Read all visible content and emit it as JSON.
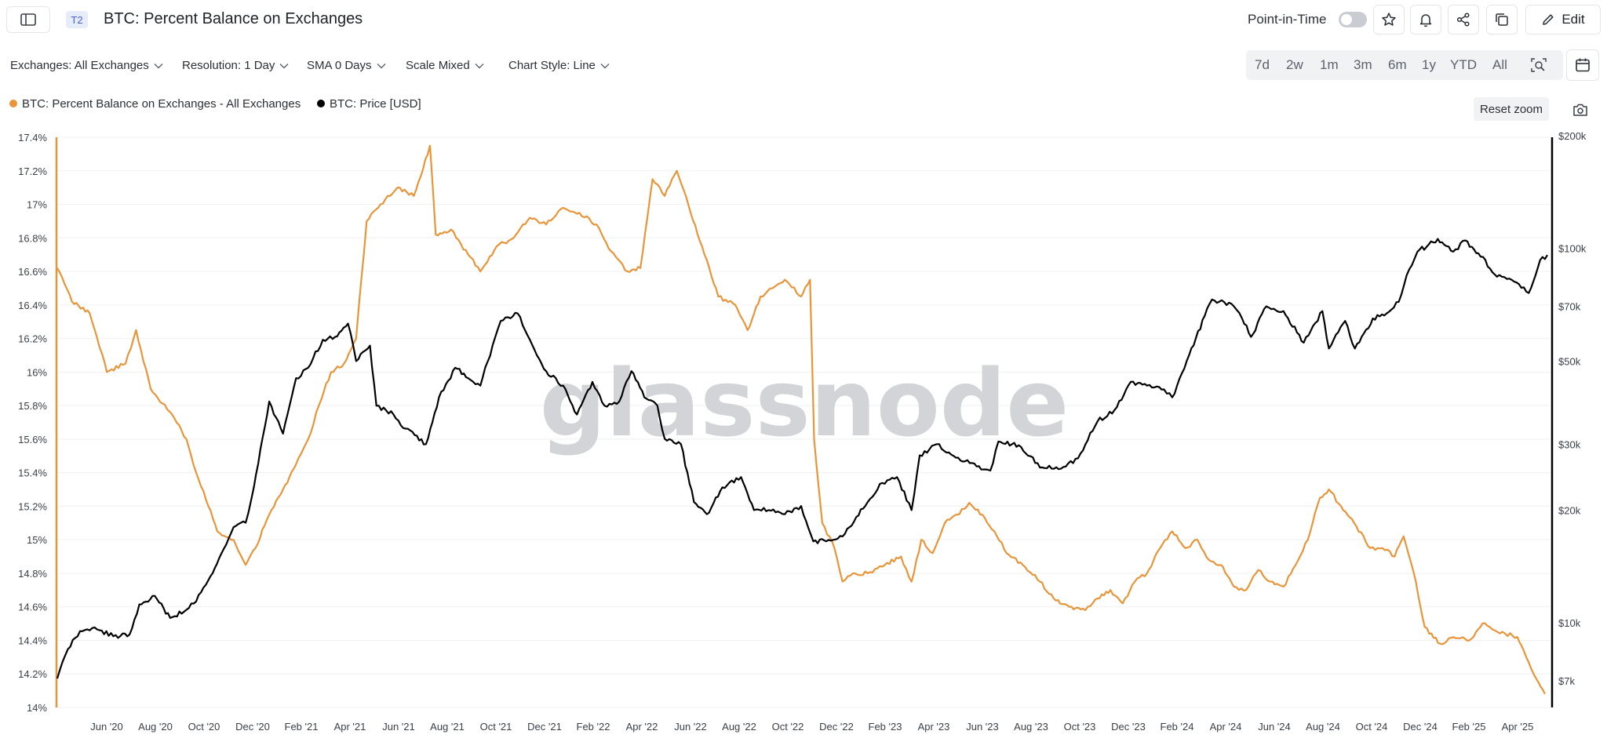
{
  "header": {
    "badge": "T2",
    "title": "BTC: Percent Balance on Exchanges",
    "pit_label": "Point-in-Time",
    "edit_label": "Edit"
  },
  "toolbar": {
    "exchanges": "Exchanges: All Exchanges",
    "resolution": "Resolution: 1 Day",
    "sma": "SMA 0 Days",
    "scale": "Scale Mixed",
    "style": "Chart Style: Line",
    "ranges": [
      "7d",
      "2w",
      "1m",
      "3m",
      "6m",
      "1y",
      "YTD",
      "All"
    ]
  },
  "reset_zoom": "Reset zoom",
  "watermark": "glassnode",
  "colors": {
    "balance": "#e8953a",
    "price": "#000000",
    "grid": "#eef0f3"
  },
  "chart_data": {
    "type": "line",
    "x_ticks": [
      "Jun '20",
      "Aug '20",
      "Oct '20",
      "Dec '20",
      "Feb '21",
      "Apr '21",
      "Jun '21",
      "Aug '21",
      "Oct '21",
      "Dec '21",
      "Feb '22",
      "Apr '22",
      "Jun '22",
      "Aug '22",
      "Oct '22",
      "Dec '22",
      "Feb '23",
      "Apr '23",
      "Jun '23",
      "Aug '23",
      "Oct '23",
      "Dec '23",
      "Feb '24",
      "Apr '24",
      "Jun '24",
      "Aug '24",
      "Oct '24",
      "Dec '24",
      "Feb '25",
      "Apr '25"
    ],
    "left_axis": {
      "ticks": [
        "14%",
        "14.2%",
        "14.4%",
        "14.6%",
        "14.8%",
        "15%",
        "15.2%",
        "15.4%",
        "15.6%",
        "15.8%",
        "16%",
        "16.2%",
        "16.4%",
        "16.6%",
        "16.8%",
        "17%",
        "17.2%",
        "17.4%"
      ],
      "min": 14.0,
      "max": 17.4
    },
    "right_axis": {
      "scale": "log",
      "ticks": [
        {
          "label": "$7k",
          "value": 7000
        },
        {
          "label": "$10k",
          "value": 10000
        },
        {
          "label": "$20k",
          "value": 20000
        },
        {
          "label": "$30k",
          "value": 30000
        },
        {
          "label": "$50k",
          "value": 50000
        },
        {
          "label": "$70k",
          "value": 70000
        },
        {
          "label": "$100k",
          "value": 100000
        },
        {
          "label": "$200k",
          "value": 200000
        }
      ]
    },
    "x_start": "2020-04-21",
    "x_end": "2025-05-01",
    "series": [
      {
        "name": "BTC: Percent Balance on Exchanges - All Exchanges",
        "axis": "left",
        "unit": "%",
        "points": [
          [
            "2020-04-22",
            16.62
          ],
          [
            "2020-05-10",
            16.42
          ],
          [
            "2020-06-01",
            16.35
          ],
          [
            "2020-06-22",
            16.0
          ],
          [
            "2020-07-15",
            16.05
          ],
          [
            "2020-07-28",
            16.25
          ],
          [
            "2020-08-15",
            15.9
          ],
          [
            "2020-09-10",
            15.75
          ],
          [
            "2020-09-28",
            15.6
          ],
          [
            "2020-10-10",
            15.4
          ],
          [
            "2020-10-25",
            15.2
          ],
          [
            "2020-11-05",
            15.05
          ],
          [
            "2020-11-25",
            15.0
          ],
          [
            "2020-12-10",
            14.85
          ],
          [
            "2020-12-22",
            14.95
          ],
          [
            "2021-01-08",
            15.15
          ],
          [
            "2021-01-25",
            15.3
          ],
          [
            "2021-02-10",
            15.45
          ],
          [
            "2021-02-25",
            15.6
          ],
          [
            "2021-03-10",
            15.8
          ],
          [
            "2021-03-25",
            16.0
          ],
          [
            "2021-04-10",
            16.05
          ],
          [
            "2021-04-25",
            16.2
          ],
          [
            "2021-05-08",
            16.9
          ],
          [
            "2021-05-25",
            17.0
          ],
          [
            "2021-06-15",
            17.1
          ],
          [
            "2021-07-05",
            17.05
          ],
          [
            "2021-07-25",
            17.35
          ],
          [
            "2021-08-01",
            16.82
          ],
          [
            "2021-08-20",
            16.85
          ],
          [
            "2021-09-10",
            16.7
          ],
          [
            "2021-09-25",
            16.6
          ],
          [
            "2021-10-15",
            16.75
          ],
          [
            "2021-11-05",
            16.8
          ],
          [
            "2021-11-25",
            16.92
          ],
          [
            "2021-12-15",
            16.88
          ],
          [
            "2022-01-05",
            16.98
          ],
          [
            "2022-01-25",
            16.95
          ],
          [
            "2022-02-15",
            16.88
          ],
          [
            "2022-03-05",
            16.72
          ],
          [
            "2022-03-25",
            16.6
          ],
          [
            "2022-04-10",
            16.62
          ],
          [
            "2022-04-25",
            17.15
          ],
          [
            "2022-05-10",
            17.05
          ],
          [
            "2022-05-25",
            17.2
          ],
          [
            "2022-06-08",
            17.0
          ],
          [
            "2022-06-25",
            16.75
          ],
          [
            "2022-07-15",
            16.45
          ],
          [
            "2022-08-05",
            16.4
          ],
          [
            "2022-08-20",
            16.25
          ],
          [
            "2022-09-05",
            16.45
          ],
          [
            "2022-09-20",
            16.5
          ],
          [
            "2022-10-05",
            16.55
          ],
          [
            "2022-10-25",
            16.45
          ],
          [
            "2022-11-05",
            16.55
          ],
          [
            "2022-11-10",
            15.6
          ],
          [
            "2022-11-20",
            15.1
          ],
          [
            "2022-12-05",
            14.95
          ],
          [
            "2022-12-15",
            14.75
          ],
          [
            "2022-12-28",
            14.8
          ],
          [
            "2023-01-15",
            14.8
          ],
          [
            "2023-02-05",
            14.85
          ],
          [
            "2023-02-25",
            14.9
          ],
          [
            "2023-03-10",
            14.75
          ],
          [
            "2023-03-22",
            15.0
          ],
          [
            "2023-04-05",
            14.92
          ],
          [
            "2023-04-20",
            15.1
          ],
          [
            "2023-05-05",
            15.15
          ],
          [
            "2023-05-20",
            15.22
          ],
          [
            "2023-06-05",
            15.15
          ],
          [
            "2023-06-20",
            15.05
          ],
          [
            "2023-07-05",
            14.92
          ],
          [
            "2023-07-25",
            14.85
          ],
          [
            "2023-08-15",
            14.75
          ],
          [
            "2023-09-01",
            14.65
          ],
          [
            "2023-09-20",
            14.6
          ],
          [
            "2023-10-10",
            14.58
          ],
          [
            "2023-10-25",
            14.65
          ],
          [
            "2023-11-10",
            14.7
          ],
          [
            "2023-11-25",
            14.62
          ],
          [
            "2023-12-10",
            14.75
          ],
          [
            "2023-12-25",
            14.8
          ],
          [
            "2024-01-10",
            14.95
          ],
          [
            "2024-01-25",
            15.05
          ],
          [
            "2024-02-10",
            14.95
          ],
          [
            "2024-02-25",
            15.0
          ],
          [
            "2024-03-10",
            14.88
          ],
          [
            "2024-03-25",
            14.85
          ],
          [
            "2024-04-10",
            14.72
          ],
          [
            "2024-04-25",
            14.7
          ],
          [
            "2024-05-10",
            14.82
          ],
          [
            "2024-05-25",
            14.75
          ],
          [
            "2024-06-10",
            14.72
          ],
          [
            "2024-06-25",
            14.85
          ],
          [
            "2024-07-10",
            15.0
          ],
          [
            "2024-07-25",
            15.25
          ],
          [
            "2024-08-05",
            15.3
          ],
          [
            "2024-08-20",
            15.2
          ],
          [
            "2024-09-05",
            15.1
          ],
          [
            "2024-09-25",
            14.95
          ],
          [
            "2024-10-10",
            14.95
          ],
          [
            "2024-10-25",
            14.9
          ],
          [
            "2024-11-05",
            15.02
          ],
          [
            "2024-11-20",
            14.75
          ],
          [
            "2024-12-01",
            14.48
          ],
          [
            "2024-12-20",
            14.38
          ],
          [
            "2025-01-05",
            14.42
          ],
          [
            "2025-01-25",
            14.4
          ],
          [
            "2025-02-10",
            14.5
          ],
          [
            "2025-02-25",
            14.46
          ],
          [
            "2025-03-10",
            14.44
          ],
          [
            "2025-03-25",
            14.42
          ],
          [
            "2025-04-05",
            14.3
          ],
          [
            "2025-04-20",
            14.15
          ],
          [
            "2025-04-28",
            14.08
          ]
        ]
      },
      {
        "name": "BTC: Price [USD]",
        "axis": "right",
        "unit": "USD",
        "points": [
          [
            "2020-04-22",
            7100
          ],
          [
            "2020-05-05",
            8500
          ],
          [
            "2020-05-20",
            9500
          ],
          [
            "2020-06-10",
            9600
          ],
          [
            "2020-06-30",
            9200
          ],
          [
            "2020-07-20",
            9300
          ],
          [
            "2020-08-01",
            11200
          ],
          [
            "2020-08-20",
            11800
          ],
          [
            "2020-09-08",
            10300
          ],
          [
            "2020-09-25",
            10700
          ],
          [
            "2020-10-10",
            11400
          ],
          [
            "2020-10-25",
            13000
          ],
          [
            "2020-11-10",
            15300
          ],
          [
            "2020-11-25",
            18000
          ],
          [
            "2020-12-10",
            18500
          ],
          [
            "2020-12-20",
            23000
          ],
          [
            "2021-01-08",
            39000
          ],
          [
            "2021-01-25",
            32000
          ],
          [
            "2021-02-10",
            45000
          ],
          [
            "2021-02-25",
            48000
          ],
          [
            "2021-03-15",
            57000
          ],
          [
            "2021-03-30",
            58000
          ],
          [
            "2021-04-15",
            63000
          ],
          [
            "2021-04-25",
            50000
          ],
          [
            "2021-05-12",
            55000
          ],
          [
            "2021-05-20",
            38000
          ],
          [
            "2021-06-10",
            36000
          ],
          [
            "2021-06-25",
            33000
          ],
          [
            "2021-07-20",
            30000
          ],
          [
            "2021-08-05",
            40000
          ],
          [
            "2021-08-25",
            48000
          ],
          [
            "2021-09-10",
            45000
          ],
          [
            "2021-09-25",
            43000
          ],
          [
            "2021-10-10",
            55000
          ],
          [
            "2021-10-20",
            64000
          ],
          [
            "2021-11-10",
            67000
          ],
          [
            "2021-11-25",
            57000
          ],
          [
            "2021-12-15",
            47000
          ],
          [
            "2022-01-05",
            43000
          ],
          [
            "2022-01-22",
            36000
          ],
          [
            "2022-02-10",
            44000
          ],
          [
            "2022-02-25",
            38000
          ],
          [
            "2022-03-15",
            39000
          ],
          [
            "2022-03-30",
            47000
          ],
          [
            "2022-04-15",
            40000
          ],
          [
            "2022-05-01",
            38000
          ],
          [
            "2022-05-10",
            31000
          ],
          [
            "2022-05-30",
            30000
          ],
          [
            "2022-06-15",
            21000
          ],
          [
            "2022-07-01",
            19500
          ],
          [
            "2022-07-20",
            23000
          ],
          [
            "2022-08-12",
            24500
          ],
          [
            "2022-08-28",
            20000
          ],
          [
            "2022-09-15",
            20000
          ],
          [
            "2022-10-05",
            19500
          ],
          [
            "2022-10-25",
            20500
          ],
          [
            "2022-11-09",
            16500
          ],
          [
            "2022-11-25",
            16500
          ],
          [
            "2022-12-15",
            17000
          ],
          [
            "2023-01-15",
            21000
          ],
          [
            "2023-01-30",
            23500
          ],
          [
            "2023-02-20",
            24500
          ],
          [
            "2023-03-10",
            20000
          ],
          [
            "2023-03-20",
            28000
          ],
          [
            "2023-04-10",
            30000
          ],
          [
            "2023-04-25",
            28500
          ],
          [
            "2023-05-15",
            27000
          ],
          [
            "2023-06-15",
            25500
          ],
          [
            "2023-06-25",
            30500
          ],
          [
            "2023-07-20",
            29800
          ],
          [
            "2023-08-18",
            26000
          ],
          [
            "2023-09-10",
            25800
          ],
          [
            "2023-10-01",
            27500
          ],
          [
            "2023-10-25",
            34500
          ],
          [
            "2023-11-15",
            37000
          ],
          [
            "2023-12-05",
            44000
          ],
          [
            "2023-12-25",
            43000
          ],
          [
            "2024-01-15",
            42000
          ],
          [
            "2024-01-25",
            40000
          ],
          [
            "2024-02-15",
            52000
          ],
          [
            "2024-03-05",
            66000
          ],
          [
            "2024-03-14",
            73000
          ],
          [
            "2024-04-10",
            70000
          ],
          [
            "2024-04-20",
            65000
          ],
          [
            "2024-05-01",
            58000
          ],
          [
            "2024-05-20",
            70000
          ],
          [
            "2024-06-10",
            68000
          ],
          [
            "2024-07-05",
            56000
          ],
          [
            "2024-07-28",
            68000
          ],
          [
            "2024-08-05",
            54000
          ],
          [
            "2024-08-25",
            64000
          ],
          [
            "2024-09-06",
            54000
          ],
          [
            "2024-09-28",
            65000
          ],
          [
            "2024-10-15",
            67000
          ],
          [
            "2024-10-30",
            72000
          ],
          [
            "2024-11-12",
            88000
          ],
          [
            "2024-11-22",
            98000
          ],
          [
            "2024-12-17",
            106000
          ],
          [
            "2025-01-05",
            98000
          ],
          [
            "2025-01-20",
            105000
          ],
          [
            "2025-02-05",
            97000
          ],
          [
            "2025-02-28",
            84000
          ],
          [
            "2025-03-15",
            83000
          ],
          [
            "2025-04-08",
            76000
          ],
          [
            "2025-04-22",
            93000
          ],
          [
            "2025-05-01",
            96000
          ]
        ]
      }
    ]
  }
}
